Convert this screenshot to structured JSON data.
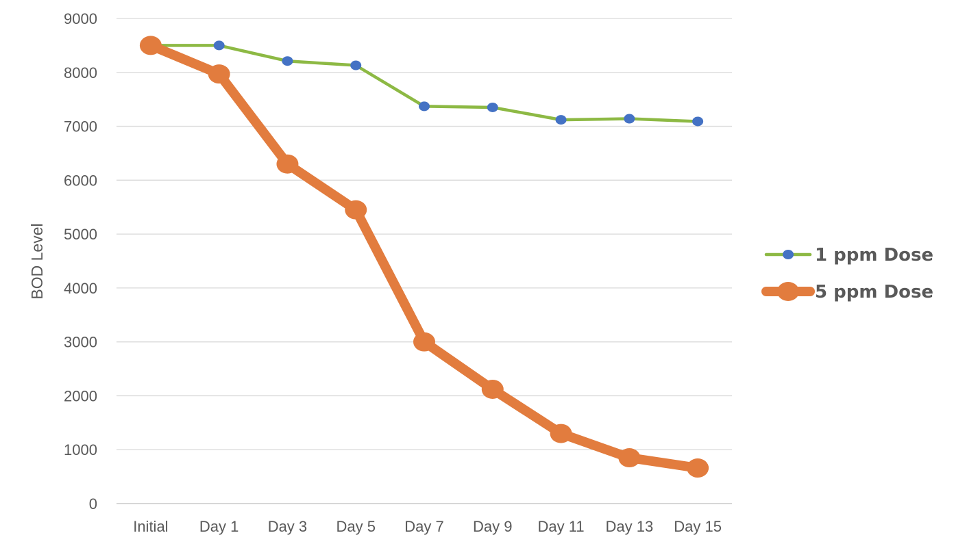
{
  "chart_data": {
    "type": "line",
    "title": "",
    "xlabel": "",
    "ylabel": "BOD Level",
    "ylim": [
      0,
      9000
    ],
    "ytick_step": 1000,
    "grid": true,
    "legend_position": "right",
    "categories": [
      "Initial",
      "Day 1",
      "Day 3",
      "Day 5",
      "Day 7",
      "Day 9",
      "Day 11",
      "Day 13",
      "Day 15"
    ],
    "series": [
      {
        "name": "1 ppm Dose",
        "line_color": "#8DB944",
        "marker_color": "#4472C4",
        "values": [
          8500,
          8500,
          8210,
          8130,
          7370,
          7350,
          7120,
          7140,
          7090
        ]
      },
      {
        "name": "5 ppm Dose",
        "line_color": "#E27C3E",
        "marker_color": "#E27C3E",
        "values": [
          8500,
          7970,
          6300,
          5450,
          3000,
          2120,
          1300,
          850,
          660
        ]
      }
    ]
  }
}
